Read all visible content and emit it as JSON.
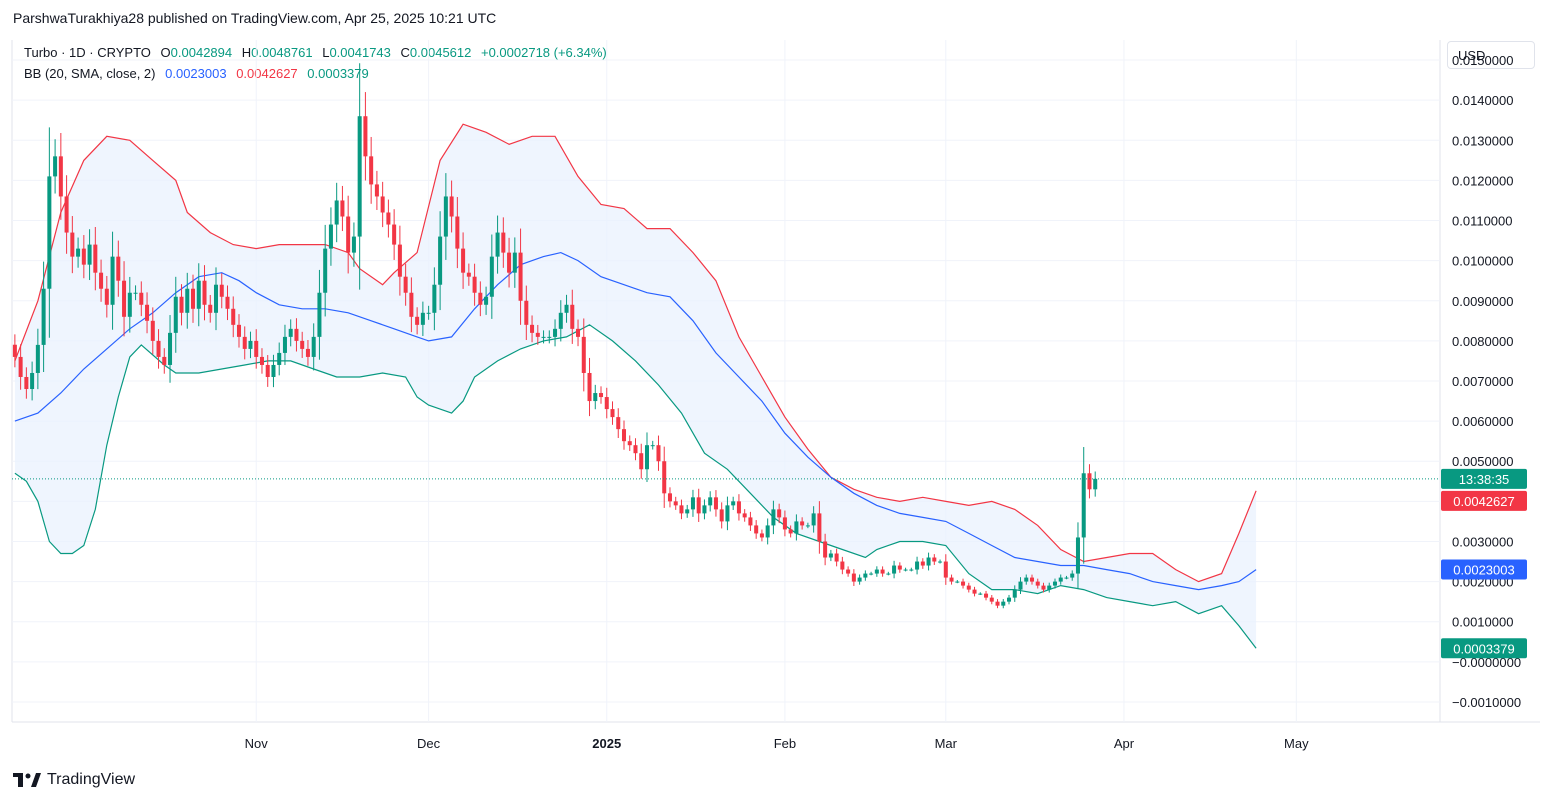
{
  "header": {
    "published": "ParshwaTurakhiya28 published on TradingView.com, Apr 25, 2025 10:21 UTC"
  },
  "legend": {
    "symbol": "Turbo · 1D · CRYPTO",
    "o_label": "O",
    "o_value": "0.0042894",
    "h_label": "H",
    "h_value": "0.0048761",
    "l_label": "L",
    "l_value": "0.0041743",
    "c_label": "C",
    "c_value": "0.0045612",
    "change": "+0.0002718 (+6.34%)",
    "bb_label": "BB (20, SMA, close, 2)",
    "bb_basis": "0.0023003",
    "bb_upper": "0.0042627",
    "bb_lower": "0.0003379"
  },
  "currency": "USD",
  "footer": {
    "brand": "TradingView"
  },
  "colors": {
    "up": "#089981",
    "down": "#f23645",
    "basis": "#2962ff",
    "upper": "#f23645",
    "lower": "#089981",
    "fill": "#e9f2fd",
    "grid": "#f0f3fa"
  },
  "chart_data": {
    "type": "candlestick",
    "title": "Turbo · 1D · CRYPTO",
    "ylim": [
      -0.0015,
      0.0155
    ],
    "y_ticks": [
      {
        "v": 0.015,
        "label": "0.0150000"
      },
      {
        "v": 0.014,
        "label": "0.0140000"
      },
      {
        "v": 0.013,
        "label": "0.0130000"
      },
      {
        "v": 0.012,
        "label": "0.0120000"
      },
      {
        "v": 0.011,
        "label": "0.0110000"
      },
      {
        "v": 0.01,
        "label": "0.0100000"
      },
      {
        "v": 0.009,
        "label": "0.0090000"
      },
      {
        "v": 0.008,
        "label": "0.0080000"
      },
      {
        "v": 0.007,
        "label": "0.0070000"
      },
      {
        "v": 0.006,
        "label": "0.0060000"
      },
      {
        "v": 0.005,
        "label": "0.0050000"
      },
      {
        "v": 0.004,
        "label": "0.0040000"
      },
      {
        "v": 0.003,
        "label": "0.0030000"
      },
      {
        "v": 0.002,
        "label": "0.0020000"
      },
      {
        "v": 0.001,
        "label": "0.0010000"
      },
      {
        "v": 0.0,
        "label": "−0.0000000"
      },
      {
        "v": -0.001,
        "label": "−0.0010000"
      }
    ],
    "x_ticks": [
      {
        "day": 20,
        "label": "Nov",
        "bold": false
      },
      {
        "day": 50,
        "label": "Dec",
        "bold": false
      },
      {
        "day": 81,
        "label": "2025",
        "bold": true
      },
      {
        "day": 112,
        "label": "Feb",
        "bold": false
      },
      {
        "day": 140,
        "label": "Mar",
        "bold": false
      },
      {
        "day": 171,
        "label": "Apr",
        "bold": false
      },
      {
        "day": 201,
        "label": "May",
        "bold": false
      }
    ],
    "x_range": [
      -22.5,
      226
    ],
    "current_price": 0.0045612,
    "price_tags": [
      {
        "type": "countdown",
        "label": "13:38:35",
        "value": 0.0045612,
        "color": "#089981"
      },
      {
        "type": "upper",
        "label": "0.0042627",
        "value": 0.0042627,
        "color": "#f23645"
      },
      {
        "type": "basis",
        "label": "0.0023003",
        "value": 0.0023003,
        "color": "#2962ff"
      },
      {
        "type": "lower",
        "label": "0.0003379",
        "value": 0.0003379,
        "color": "#089981"
      }
    ],
    "closes": [
      0.0076,
      0.0071,
      0.0068,
      0.0072,
      0.0079,
      0.0093,
      0.0121,
      0.0126,
      0.0116,
      0.0107,
      0.0101,
      0.0103,
      0.0099,
      0.0104,
      0.0097,
      0.0093,
      0.0089,
      0.0101,
      0.0095,
      0.0086,
      0.0092,
      0.0092,
      0.0089,
      0.0085,
      0.008,
      0.0076,
      0.0074,
      0.0082,
      0.0091,
      0.0087,
      0.0093,
      0.0088,
      0.0095,
      0.0089,
      0.0087,
      0.0094,
      0.0091,
      0.0088,
      0.0084,
      0.0081,
      0.0078,
      0.008,
      0.0076,
      0.0074,
      0.0071,
      0.0074,
      0.0077,
      0.0081,
      0.0083,
      0.008,
      0.0078,
      0.0076,
      0.0081,
      0.0092,
      0.0103,
      0.0109,
      0.0115,
      0.0111,
      0.0102,
      0.0106,
      0.0136,
      0.0126,
      0.0119,
      0.0116,
      0.0112,
      0.0109,
      0.0104,
      0.0096,
      0.0092,
      0.0086,
      0.0084,
      0.0087,
      0.0087,
      0.0094,
      0.0106,
      0.0116,
      0.0111,
      0.0103,
      0.0097,
      0.0096,
      0.0092,
      0.0089,
      0.0091,
      0.0101,
      0.0107,
      0.0102,
      0.0097,
      0.0102,
      0.009,
      0.0084,
      0.0082,
      0.0081,
      0.0081,
      0.0081,
      0.0083,
      0.0087,
      0.0089,
      0.0083,
      0.0081,
      0.0072,
      0.0065,
      0.0067,
      0.0066,
      0.0063,
      0.0061,
      0.0058,
      0.0055,
      0.0054,
      0.0052,
      0.0048,
      0.0054,
      0.0054,
      0.005,
      0.0042,
      0.004,
      0.0039,
      0.0037,
      0.0038,
      0.0041,
      0.0037,
      0.0039,
      0.0041,
      0.0038,
      0.0035,
      0.0039,
      0.004,
      0.0037,
      0.0036,
      0.0034,
      0.0032,
      0.0031,
      0.0034,
      0.0038,
      0.0036,
      0.0033,
      0.0032,
      0.0035,
      0.0034,
      0.0034,
      0.0037,
      0.003,
      0.0026,
      0.0027,
      0.0025,
      0.0023,
      0.0022,
      0.002,
      0.0021,
      0.0022,
      0.0022,
      0.0023,
      0.0022,
      0.0022,
      0.0024,
      0.0023,
      0.0023,
      0.0023,
      0.0025,
      0.0024,
      0.0026,
      0.0025,
      0.0025,
      0.0021,
      0.002,
      0.002,
      0.0019,
      0.0018,
      0.0017,
      0.0017,
      0.0016,
      0.0015,
      0.0014,
      0.0015,
      0.0016,
      0.0018,
      0.002,
      0.0021,
      0.002,
      0.0019,
      0.0018,
      0.0019,
      0.002,
      0.0021,
      0.0021,
      0.0022,
      0.0031,
      0.0047,
      0.0043,
      0.0045612
    ],
    "bollinger": {
      "basis": [
        [
          -22,
          0.006
        ],
        [
          -18,
          0.0062
        ],
        [
          -14,
          0.0067
        ],
        [
          -10,
          0.0073
        ],
        [
          -6,
          0.0078
        ],
        [
          -2,
          0.0083
        ],
        [
          2,
          0.0087
        ],
        [
          6,
          0.0092
        ],
        [
          10,
          0.0096
        ],
        [
          14,
          0.0097
        ],
        [
          17,
          0.0095
        ],
        [
          20,
          0.0092
        ],
        [
          24,
          0.0089
        ],
        [
          28,
          0.0088
        ],
        [
          32,
          0.0088
        ],
        [
          36,
          0.0087
        ],
        [
          40,
          0.0085
        ],
        [
          44,
          0.0083
        ],
        [
          48,
          0.0081
        ],
        [
          50,
          0.008
        ],
        [
          54,
          0.0081
        ],
        [
          58,
          0.0088
        ],
        [
          62,
          0.0094
        ],
        [
          66,
          0.0099
        ],
        [
          70,
          0.0101
        ],
        [
          73,
          0.0102
        ],
        [
          76,
          0.01
        ],
        [
          80,
          0.0096
        ],
        [
          84,
          0.0094
        ],
        [
          88,
          0.0092
        ],
        [
          92,
          0.0091
        ],
        [
          96,
          0.0085
        ],
        [
          100,
          0.0077
        ],
        [
          104,
          0.0071
        ],
        [
          108,
          0.0065
        ],
        [
          112,
          0.0057
        ],
        [
          116,
          0.0051
        ],
        [
          120,
          0.0046
        ],
        [
          124,
          0.0042
        ],
        [
          128,
          0.0039
        ],
        [
          132,
          0.0037
        ],
        [
          136,
          0.0036
        ],
        [
          140,
          0.0035
        ],
        [
          144,
          0.0032
        ],
        [
          148,
          0.0029
        ],
        [
          152,
          0.0026
        ],
        [
          156,
          0.0025
        ],
        [
          160,
          0.0024
        ],
        [
          164,
          0.0024
        ],
        [
          168,
          0.0023
        ],
        [
          172,
          0.0022
        ],
        [
          176,
          0.002
        ],
        [
          180,
          0.0019
        ],
        [
          184,
          0.0018
        ],
        [
          188,
          0.0019
        ],
        [
          191,
          0.002
        ],
        [
          194,
          0.0023
        ]
      ],
      "upper": [
        [
          -22,
          0.0075
        ],
        [
          -18,
          0.009
        ],
        [
          -14,
          0.0112
        ],
        [
          -10,
          0.0125
        ],
        [
          -6,
          0.0131
        ],
        [
          -2,
          0.013
        ],
        [
          2,
          0.0125
        ],
        [
          6,
          0.012
        ],
        [
          8,
          0.0112
        ],
        [
          12,
          0.0107
        ],
        [
          16,
          0.0104
        ],
        [
          20,
          0.0103
        ],
        [
          24,
          0.0104
        ],
        [
          28,
          0.0104
        ],
        [
          32,
          0.0104
        ],
        [
          36,
          0.0102
        ],
        [
          38,
          0.0098
        ],
        [
          42,
          0.0094
        ],
        [
          44,
          0.0097
        ],
        [
          48,
          0.0102
        ],
        [
          52,
          0.0125
        ],
        [
          56,
          0.0134
        ],
        [
          60,
          0.0132
        ],
        [
          64,
          0.0129
        ],
        [
          68,
          0.0131
        ],
        [
          72,
          0.0131
        ],
        [
          76,
          0.0121
        ],
        [
          80,
          0.0114
        ],
        [
          84,
          0.0113
        ],
        [
          88,
          0.0108
        ],
        [
          92,
          0.0108
        ],
        [
          96,
          0.0102
        ],
        [
          100,
          0.0095
        ],
        [
          104,
          0.0081
        ],
        [
          108,
          0.0071
        ],
        [
          112,
          0.0061
        ],
        [
          116,
          0.0053
        ],
        [
          120,
          0.0046
        ],
        [
          124,
          0.0043
        ],
        [
          128,
          0.0041
        ],
        [
          132,
          0.004
        ],
        [
          136,
          0.0041
        ],
        [
          140,
          0.004
        ],
        [
          144,
          0.0039
        ],
        [
          148,
          0.004
        ],
        [
          152,
          0.0038
        ],
        [
          156,
          0.0034
        ],
        [
          160,
          0.0028
        ],
        [
          164,
          0.0025
        ],
        [
          168,
          0.0026
        ],
        [
          172,
          0.0027
        ],
        [
          176,
          0.0027
        ],
        [
          180,
          0.0023
        ],
        [
          184,
          0.002
        ],
        [
          188,
          0.0022
        ],
        [
          191,
          0.0032
        ],
        [
          194,
          0.0042627
        ]
      ],
      "lower": [
        [
          -22,
          0.0047
        ],
        [
          -20,
          0.0045
        ],
        [
          -18,
          0.004
        ],
        [
          -16,
          0.003
        ],
        [
          -14,
          0.0027
        ],
        [
          -12,
          0.0027
        ],
        [
          -10,
          0.0029
        ],
        [
          -8,
          0.0038
        ],
        [
          -6,
          0.0054
        ],
        [
          -4,
          0.0066
        ],
        [
          -2,
          0.0076
        ],
        [
          0,
          0.0079
        ],
        [
          4,
          0.0074
        ],
        [
          6,
          0.0072
        ],
        [
          10,
          0.0072
        ],
        [
          14,
          0.0073
        ],
        [
          18,
          0.0074
        ],
        [
          22,
          0.0075
        ],
        [
          26,
          0.0075
        ],
        [
          30,
          0.0073
        ],
        [
          34,
          0.0071
        ],
        [
          38,
          0.0071
        ],
        [
          42,
          0.0072
        ],
        [
          46,
          0.0071
        ],
        [
          48,
          0.0066
        ],
        [
          50,
          0.0064
        ],
        [
          52,
          0.0063
        ],
        [
          54,
          0.0062
        ],
        [
          56,
          0.0065
        ],
        [
          58,
          0.0071
        ],
        [
          62,
          0.0075
        ],
        [
          66,
          0.0078
        ],
        [
          70,
          0.008
        ],
        [
          74,
          0.0081
        ],
        [
          78,
          0.0084
        ],
        [
          82,
          0.008
        ],
        [
          86,
          0.0075
        ],
        [
          90,
          0.0069
        ],
        [
          94,
          0.0062
        ],
        [
          98,
          0.0052
        ],
        [
          102,
          0.0048
        ],
        [
          106,
          0.0042
        ],
        [
          110,
          0.0036
        ],
        [
          114,
          0.0032
        ],
        [
          118,
          0.003
        ],
        [
          122,
          0.0028
        ],
        [
          126,
          0.0026
        ],
        [
          128,
          0.0028
        ],
        [
          132,
          0.003
        ],
        [
          136,
          0.003
        ],
        [
          140,
          0.0029
        ],
        [
          144,
          0.0022
        ],
        [
          148,
          0.0018
        ],
        [
          152,
          0.0018
        ],
        [
          156,
          0.0017
        ],
        [
          160,
          0.0019
        ],
        [
          164,
          0.0018
        ],
        [
          168,
          0.0016
        ],
        [
          172,
          0.0015
        ],
        [
          176,
          0.0014
        ],
        [
          180,
          0.0015
        ],
        [
          184,
          0.0012
        ],
        [
          188,
          0.0014
        ],
        [
          191,
          0.0009
        ],
        [
          194,
          0.0003379
        ]
      ]
    }
  }
}
